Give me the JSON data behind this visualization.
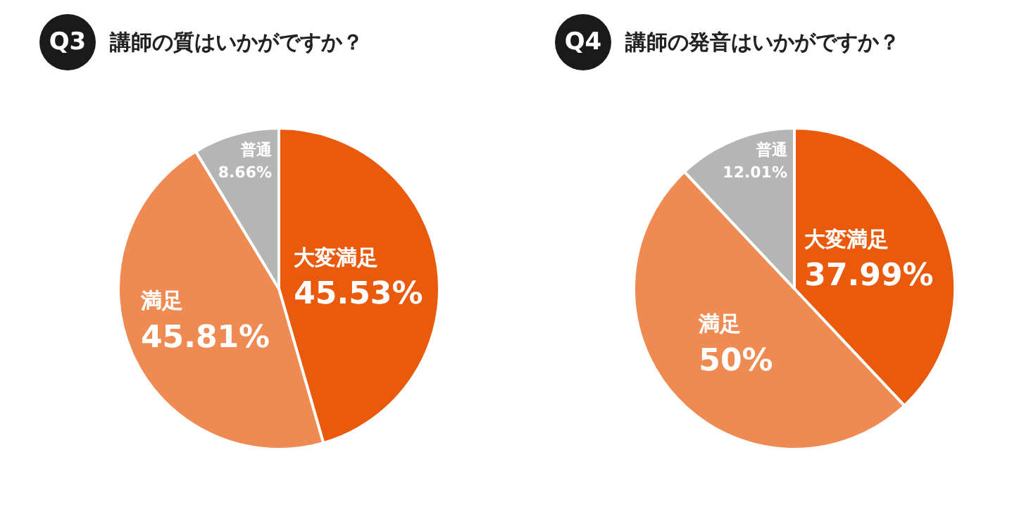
{
  "chart_data": [
    {
      "type": "pie",
      "title": "講師の質はいかがですか？",
      "annotations": [
        "Q3"
      ],
      "categories": [
        "大変満足",
        "満足",
        "普通"
      ],
      "values": [
        45.53,
        45.81,
        8.66
      ],
      "value_labels": [
        "45.53%",
        "45.81%",
        "8.66%"
      ],
      "colors": [
        "#ea5a0c",
        "#ef8a52",
        "#b5b5b5"
      ],
      "legend": false
    },
    {
      "type": "pie",
      "title": "講師の発音はいかがですか？",
      "annotations": [
        "Q4"
      ],
      "categories": [
        "大変満足",
        "満足",
        "普通"
      ],
      "values": [
        37.99,
        50,
        12.01
      ],
      "value_labels": [
        "37.99%",
        "50%",
        "12.01%"
      ],
      "colors": [
        "#ea5a0c",
        "#ef8a52",
        "#b5b5b5"
      ],
      "legend": false
    }
  ]
}
